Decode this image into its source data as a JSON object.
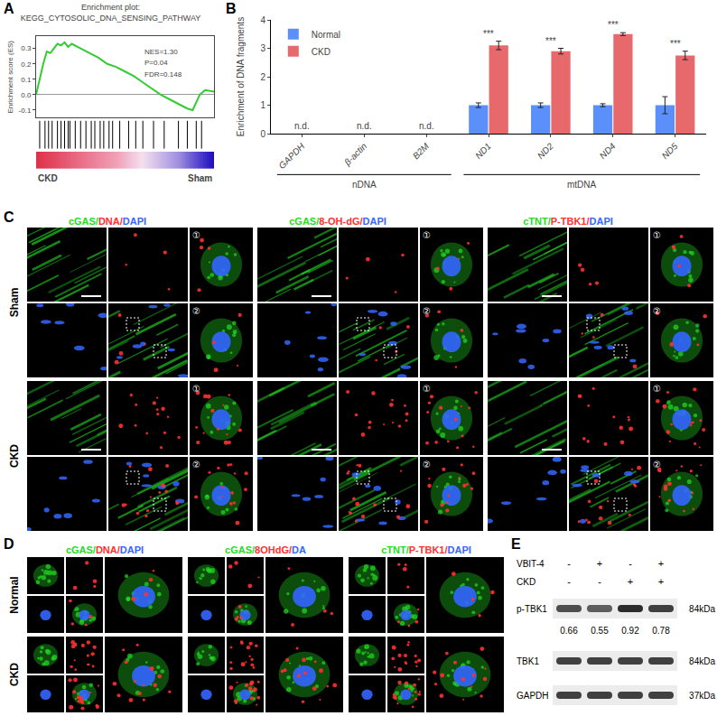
{
  "panel_labels": [
    "A",
    "B",
    "C",
    "D",
    "E"
  ],
  "chart_data": [
    {
      "type": "line",
      "title": "Enrichment plot:\nKEGG_CYTOSOLIC_DNA_SENSING_PATHWAY",
      "y_label": "Enrichment score (ES)",
      "x": [
        0,
        2,
        4,
        6,
        8,
        10,
        12,
        14,
        16,
        18,
        20,
        25,
        30,
        35,
        40,
        45,
        50,
        55,
        60,
        65,
        70,
        75,
        80,
        85,
        88,
        90,
        92,
        95,
        100
      ],
      "values": [
        0,
        0.1,
        0.2,
        0.28,
        0.27,
        0.3,
        0.33,
        0.32,
        0.34,
        0.31,
        0.33,
        0.3,
        0.27,
        0.24,
        0.2,
        0.18,
        0.15,
        0.12,
        0.08,
        0.04,
        0,
        -0.03,
        -0.06,
        -0.09,
        -0.1,
        -0.05,
        0,
        0.03,
        0.02
      ],
      "hits": [
        2,
        5,
        7,
        9,
        12,
        14,
        16,
        18,
        19,
        22,
        25,
        28,
        31,
        33,
        36,
        38,
        41,
        43,
        47,
        52,
        56,
        60,
        66,
        72,
        80,
        85,
        90,
        93
      ],
      "annotations": [
        "NES=1.30",
        "P=0.04",
        "FDR=0.148"
      ],
      "x_end_labels": [
        "CKD",
        "Sham"
      ],
      "color": "#33cc33",
      "xlim": [
        0,
        100
      ],
      "ylim": [
        -0.15,
        0.38
      ],
      "yticks": [
        -0.1,
        {
          "value": 0,
          "label": "0.0"
        },
        0.1,
        0.2,
        0.3
      ],
      "tick_labels": "y",
      "grid": false
    },
    {
      "type": "bar",
      "y_label": "Enrichment of DNA fragments",
      "categories": [
        "GAPDH",
        "β-actin",
        "B2M",
        "ND1",
        "ND2",
        "ND4",
        "ND5"
      ],
      "series": [
        {
          "name": "Normal",
          "color": "#5b8ff9",
          "values": [
            null,
            null,
            null,
            1,
            1,
            1,
            1
          ],
          "errors": [
            null,
            null,
            null,
            0.08,
            0.08,
            0.05,
            0.3
          ]
        },
        {
          "name": "CKD",
          "color": "#e8696b",
          "values": [
            null,
            null,
            null,
            3.1,
            2.9,
            3.5,
            2.75
          ],
          "errors": [
            null,
            null,
            null,
            0.15,
            0.1,
            0.05,
            0.15
          ]
        }
      ],
      "annotations": [
        {
          "category": "GAPDH",
          "text": "n.d."
        },
        {
          "category": "β-actin",
          "text": "n.d."
        },
        {
          "category": "B2M",
          "text": "n.d."
        },
        {
          "category": "ND1",
          "text": "***"
        },
        {
          "category": "ND2",
          "text": "***"
        },
        {
          "category": "ND4",
          "text": "***"
        },
        {
          "category": "ND5",
          "text": "***"
        }
      ],
      "groups": [
        {
          "label": "nDNA",
          "categories": [
            "GAPDH",
            "β-actin",
            "B2M"
          ]
        },
        {
          "label": "mtDNA",
          "categories": [
            "ND1",
            "ND2",
            "ND4",
            "ND5"
          ]
        }
      ],
      "ylim": [
        0,
        4
      ],
      "yticks": [
        0,
        1,
        2,
        3,
        4
      ],
      "legend": "top-left",
      "grid": false
    }
  ],
  "microscopy": [
    {
      "columns": [
        "cGAS/DNA/DAPI",
        "cGAS/8-OH-dG/DAPI",
        "cTNT/P-TBK1/DAPI"
      ],
      "rows": [
        "Sham",
        "CKD"
      ],
      "insets": [
        "①",
        "②"
      ],
      "colors": [
        "#22dd22",
        "#ff3030",
        "#3366ff"
      ]
    },
    {
      "columns": [
        "cGAS/DNA/DAPI",
        "cGAS/8OHdG/DA",
        "cTNT/P-TBK1/DAPI"
      ],
      "rows": [
        "Normal",
        "CKD"
      ],
      "colors": [
        "#22dd22",
        "#ff3030",
        "#3366ff"
      ]
    }
  ],
  "western_blot": {
    "conditions": [
      {
        "label": "VBIT-4",
        "signs": [
          "-",
          "+",
          "-",
          "+"
        ]
      },
      {
        "label": "CKD",
        "signs": [
          "-",
          "-",
          "+",
          "+"
        ]
      }
    ],
    "bands": [
      {
        "label": "p-TBK1",
        "size": "84kDa",
        "quantification": [
          0.66,
          0.55,
          0.92,
          0.78
        ]
      },
      {
        "label": "TBK1",
        "size": "84kDa"
      },
      {
        "label": "GAPDH",
        "size": "37kDa"
      }
    ]
  }
}
